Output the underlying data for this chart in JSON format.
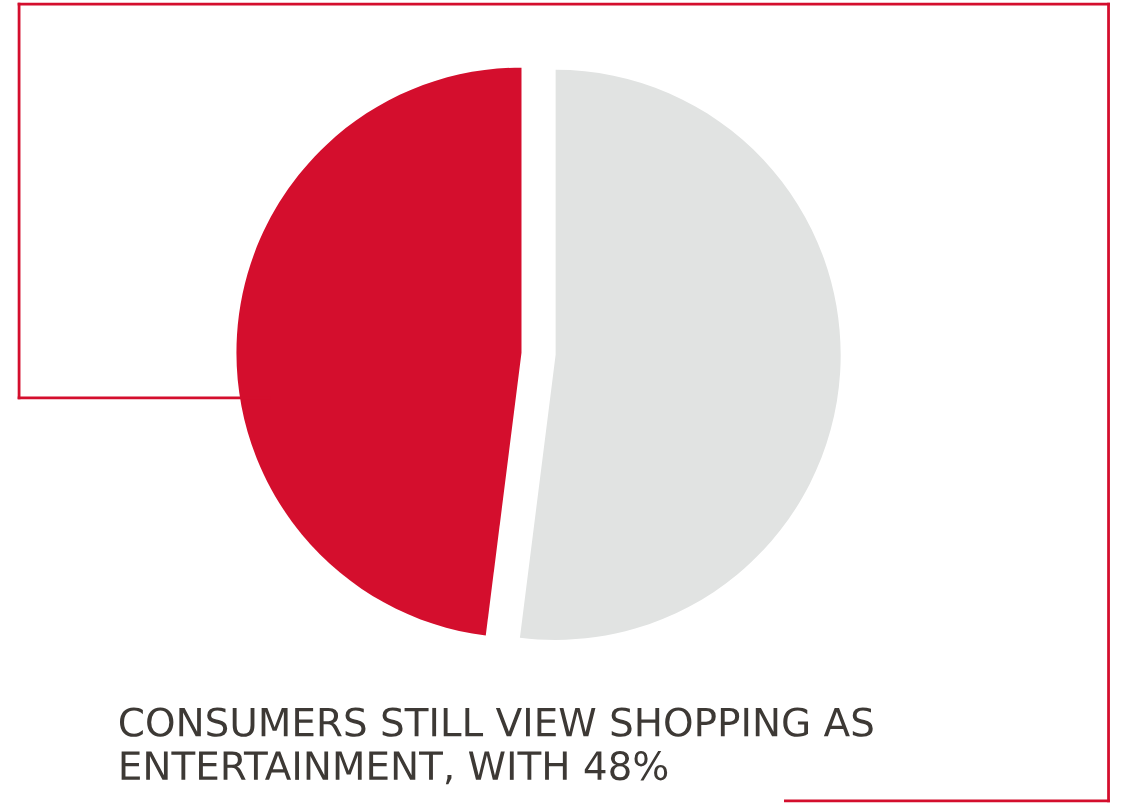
{
  "chart_data": {
    "type": "pie",
    "title": "CONSUMERS STILL VIEW SHOPPING AS ENTERTAINMENT, WITH 48%",
    "categories": [
      null,
      null
    ],
    "values": [
      48,
      52
    ],
    "colors": [
      "#d40e2d",
      "#e1e3e2"
    ]
  }
}
